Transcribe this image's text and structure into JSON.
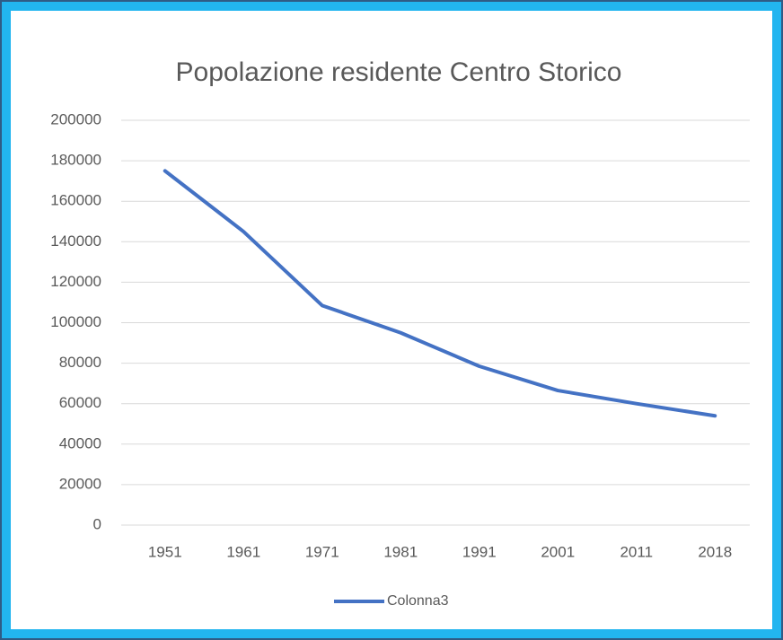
{
  "chart_data": {
    "type": "line",
    "title": "Popolazione residente Centro Storico",
    "categories": [
      "1951",
      "1961",
      "1971",
      "1981",
      "1991",
      "2001",
      "2011",
      "2018"
    ],
    "series": [
      {
        "name": "Colonna3",
        "color": "#4472c4",
        "values": [
          175000,
          145000,
          108500,
          95000,
          78500,
          66500,
          60000,
          54000
        ]
      }
    ],
    "ylim": [
      0,
      200000
    ],
    "yticks": [
      0,
      20000,
      40000,
      60000,
      80000,
      100000,
      120000,
      140000,
      160000,
      180000,
      200000
    ],
    "grid": true,
    "legend": "bottom"
  }
}
